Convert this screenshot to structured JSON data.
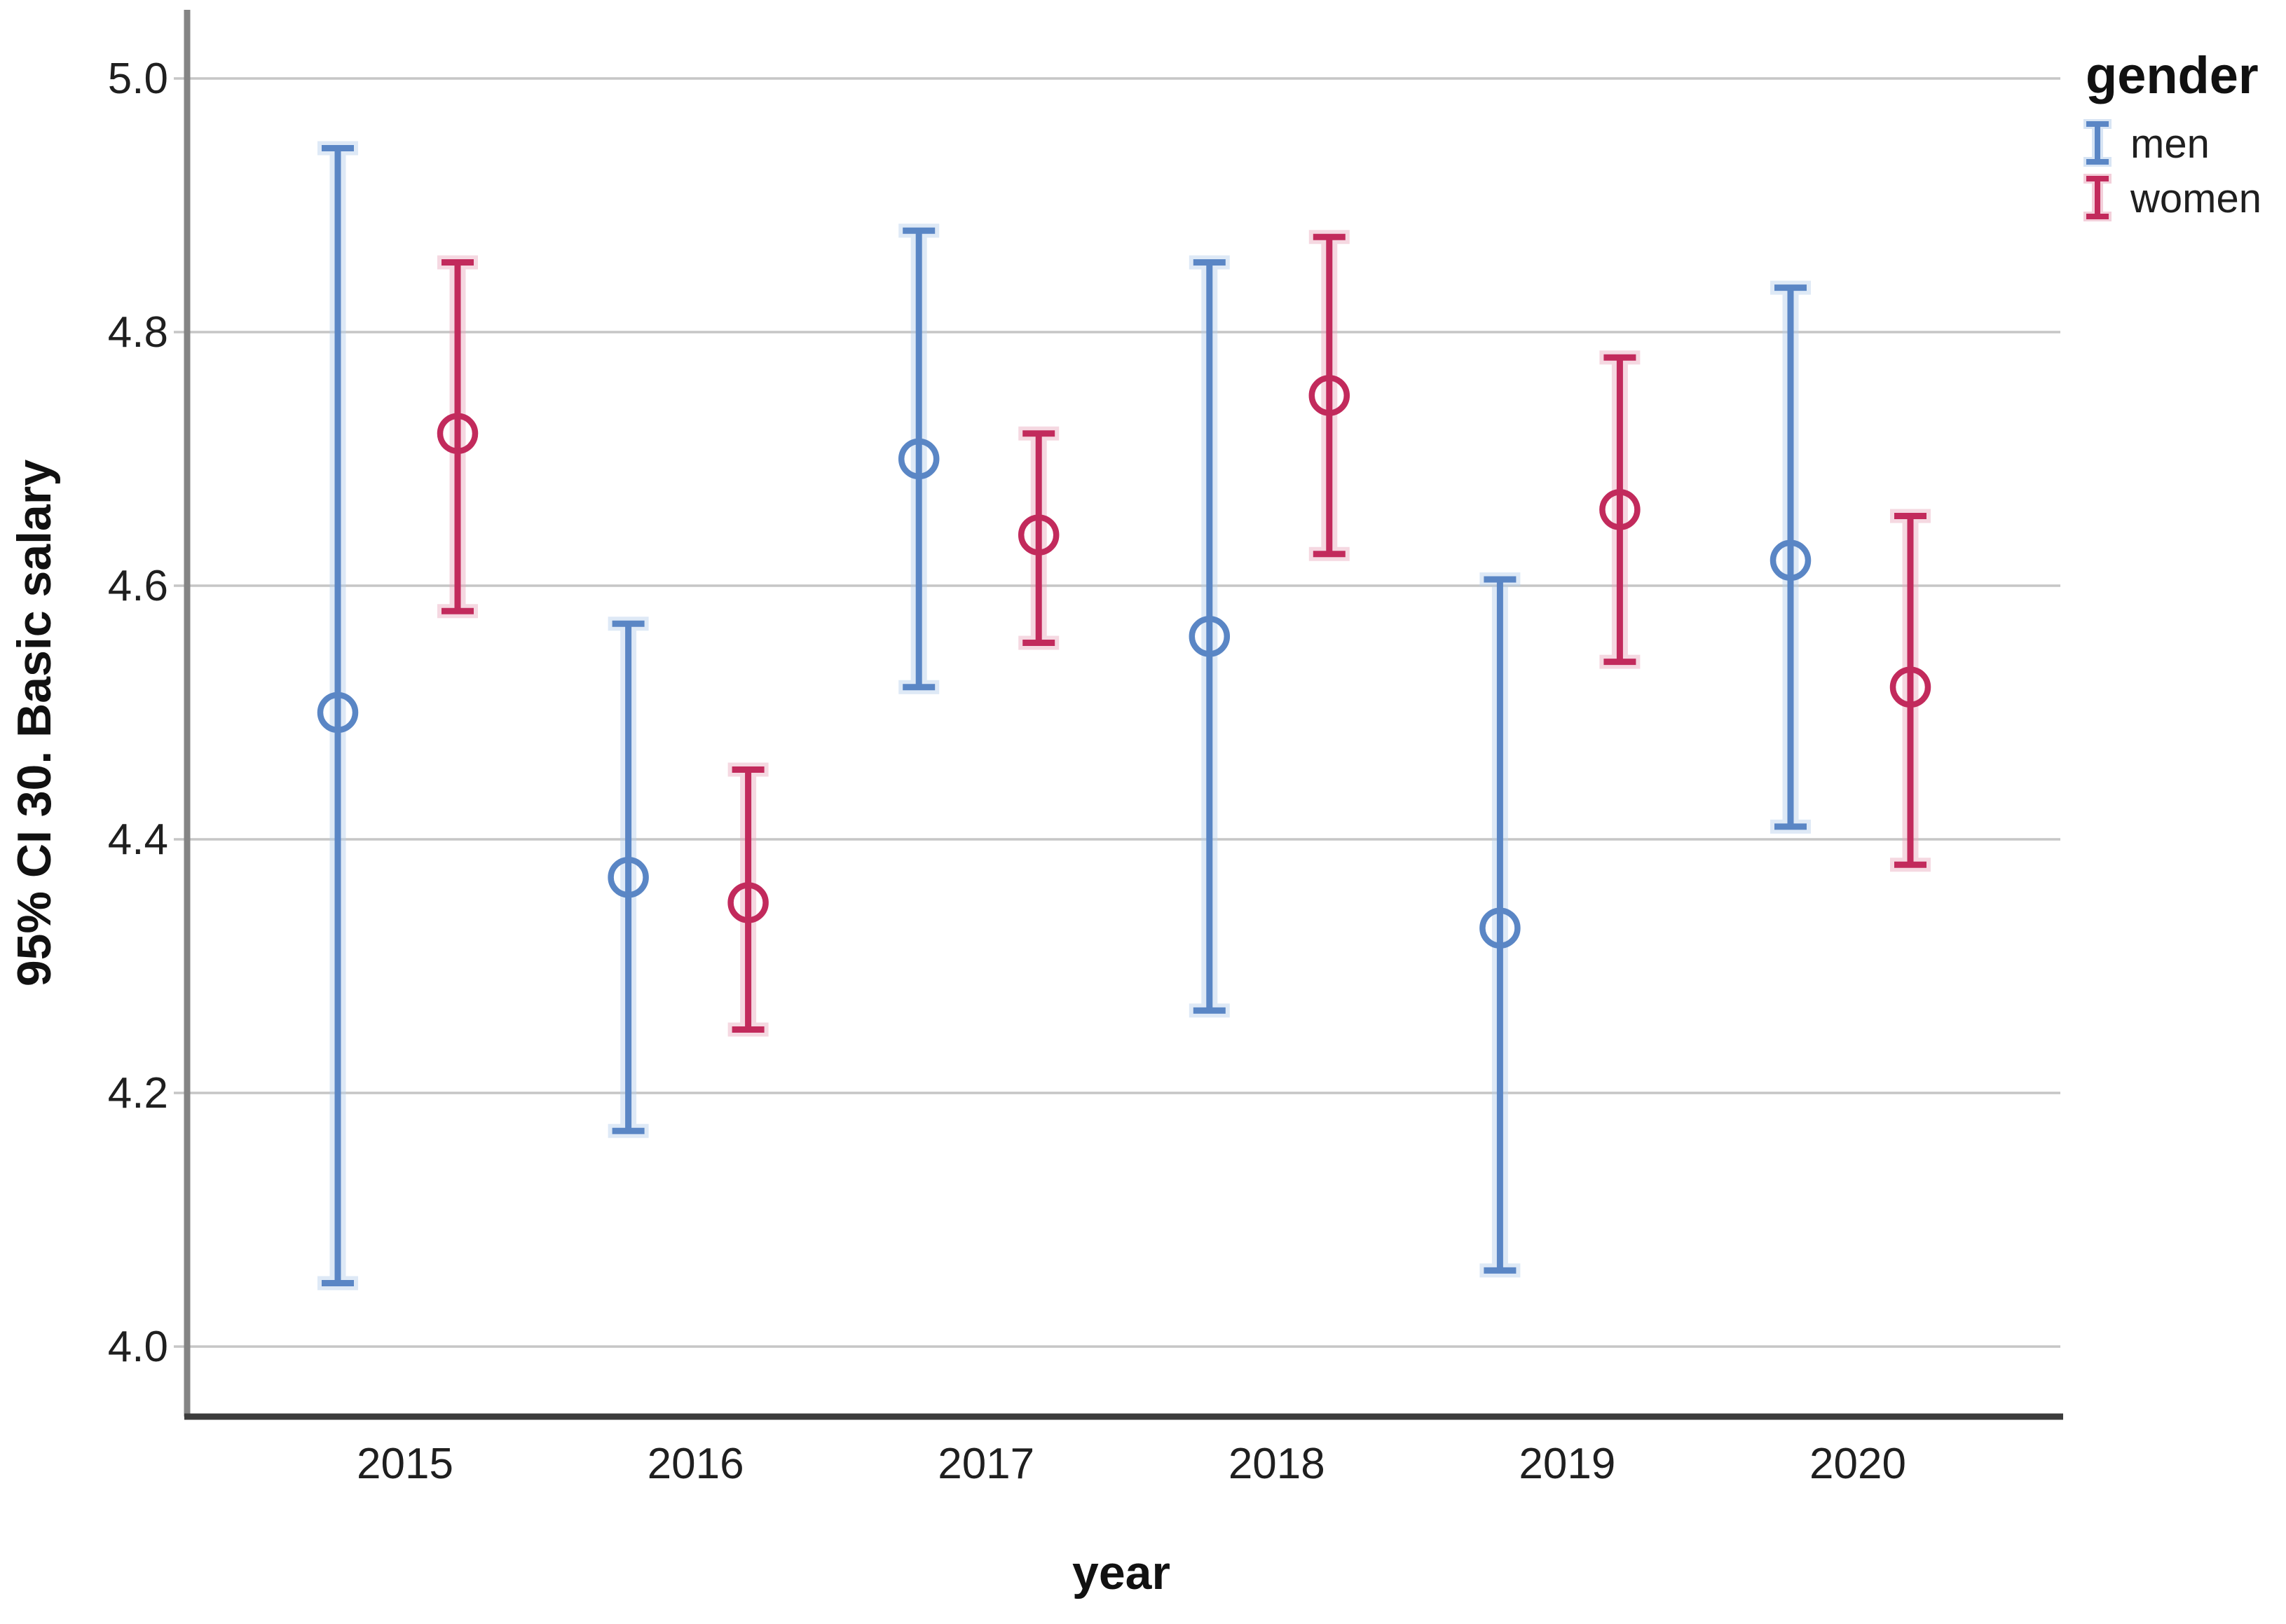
{
  "figure": {
    "background": "#ffffff"
  },
  "chart_data": {
    "type": "errorbar",
    "title": "",
    "xlabel": "year",
    "ylabel": "95% CI 30. Basic salary",
    "x_categories": [
      "2015",
      "2016",
      "2017",
      "2018",
      "2019",
      "2020"
    ],
    "y_ticks": [
      "4.0",
      "4.2",
      "4.4",
      "4.6",
      "4.8",
      "5.0"
    ],
    "ylim": [
      3.94,
      5.06
    ],
    "grid": "horizontal-only",
    "legend": {
      "title": "gender",
      "position": "top-right",
      "entries": [
        {
          "label": "men",
          "color": "#5a86c5"
        },
        {
          "label": "women",
          "color": "#c22a5c"
        }
      ]
    },
    "series": [
      {
        "name": "men",
        "color": "#5a86c5",
        "halo": "#b7cfec",
        "marker": "open-circle",
        "means": [
          4.5,
          4.37,
          4.7,
          4.56,
          4.33,
          4.62
        ],
        "ci_high": [
          4.945,
          4.57,
          4.88,
          4.855,
          4.605,
          4.835
        ],
        "ci_low": [
          4.05,
          4.17,
          4.52,
          4.265,
          4.06,
          4.41
        ]
      },
      {
        "name": "women",
        "color": "#c22a5c",
        "halo": "#eaa9bd",
        "marker": "open-circle",
        "means": [
          4.72,
          4.35,
          4.64,
          4.75,
          4.66,
          4.52
        ],
        "ci_high": [
          4.855,
          4.455,
          4.72,
          4.875,
          4.78,
          4.655
        ],
        "ci_low": [
          4.58,
          4.25,
          4.555,
          4.625,
          4.54,
          4.38
        ]
      }
    ],
    "style_colors": {
      "grid": "#c6c6c6",
      "y_axis_line": "#848484",
      "x_axis_line": "#3c3c3c",
      "text": "#1a1a1a"
    }
  }
}
